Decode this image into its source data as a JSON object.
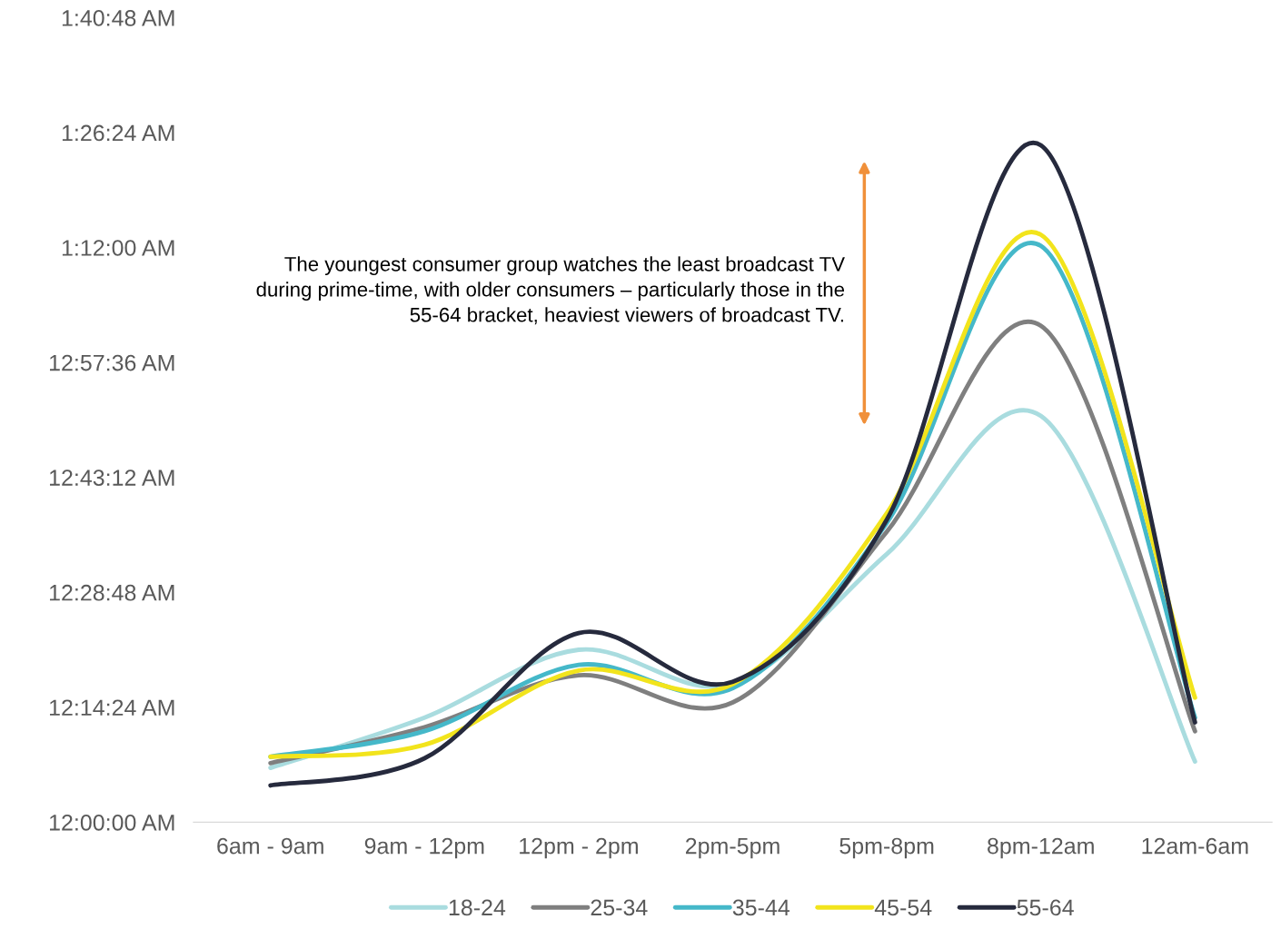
{
  "chart_data": {
    "type": "line",
    "categories": [
      "6am - 9am",
      "9am - 12pm",
      "12pm - 2pm",
      "2pm-5pm",
      "5pm-8pm",
      "8pm-12am",
      "12am-6am"
    ],
    "series": [
      {
        "name": "18-24",
        "color": "#a9dcdf",
        "values": [
          6.8,
          13.1,
          21.6,
          17.3,
          33.6,
          50.9,
          7.6
        ]
      },
      {
        "name": "25-34",
        "color": "#7f7f7f",
        "values": [
          7.4,
          11.9,
          18.4,
          15.0,
          36.4,
          62.2,
          11.4
        ]
      },
      {
        "name": "35-44",
        "color": "#45b8c9",
        "values": [
          8.2,
          11.4,
          19.7,
          16.8,
          37.5,
          72.2,
          13.1
        ]
      },
      {
        "name": "45-54",
        "color": "#f2e41c",
        "values": [
          8.2,
          9.7,
          19.0,
          17.3,
          38.7,
          73.6,
          15.6
        ]
      },
      {
        "name": "55-64",
        "color": "#262a3d",
        "values": [
          4.6,
          8.0,
          23.7,
          17.6,
          37.9,
          84.8,
          12.5
        ]
      }
    ],
    "ylim": [
      0,
      100.8
    ],
    "yticks": [
      {
        "value": 0,
        "label": "12:00:00 AM"
      },
      {
        "value": 14.4,
        "label": "12:14:24 AM"
      },
      {
        "value": 28.8,
        "label": "12:28:48 AM"
      },
      {
        "value": 43.2,
        "label": "12:43:12 AM"
      },
      {
        "value": 57.6,
        "label": "12:57:36 AM"
      },
      {
        "value": 72,
        "label": "1:12:00 AM"
      },
      {
        "value": 86.4,
        "label": "1:26:24 AM"
      },
      {
        "value": 100.8,
        "label": "1:40:48 AM"
      }
    ],
    "grid": false,
    "legend": "bottom",
    "marker": "none",
    "line_style": "solid",
    "annotations": [
      "The youngest consumer group watches the least broadcast TV during prime-time, with older consumers – particularly those in the 55-64 bracket, heaviest viewers of broadcast TV."
    ]
  }
}
